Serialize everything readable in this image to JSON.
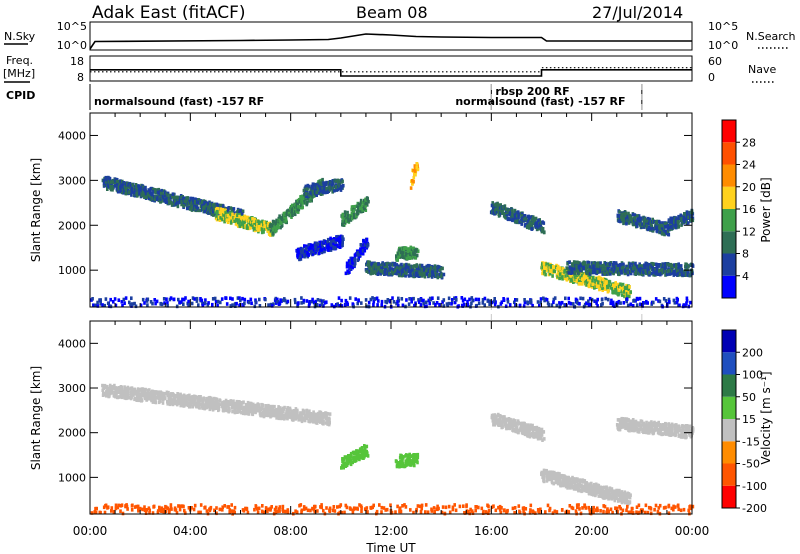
{
  "header": {
    "station": "Adak East (fitACF)",
    "beam": "Beam 08",
    "date": "27/Jul/2014"
  },
  "strip1": {
    "left_label": "N.Sky",
    "right_label": "N.Search",
    "left_ticks": [
      "10^5",
      "10^0"
    ],
    "right_ticks": [
      "10^5",
      "10^0"
    ]
  },
  "strip2": {
    "left_label_1": "Freq.",
    "left_label_2": "[MHz]",
    "right_label": "Nave",
    "left_ticks": [
      "18",
      "8"
    ],
    "right_ticks": [
      "60",
      "0"
    ]
  },
  "cpid": {
    "label": "CPID",
    "segments": [
      {
        "text": "normalsound (fast) -157 RF",
        "start_hour": 0.0,
        "end_hour": 16.0
      },
      {
        "text": "rbsp 200 RF",
        "start_hour": 16.0,
        "end_hour": 22.0
      },
      {
        "text": "normalsound (fast) -157 RF",
        "start_hour": 16.0,
        "end_hour": 22.0
      }
    ]
  },
  "time_axis": {
    "label": "Time UT",
    "ticks": [
      "00:00",
      "04:00",
      "08:00",
      "12:00",
      "16:00",
      "20:00",
      "00:00"
    ]
  },
  "panels": {
    "power": {
      "ylabel": "Slant Range [km]",
      "yticks": [
        "1000",
        "2000",
        "3000",
        "4000"
      ],
      "cbar_label": "Power [dB]",
      "cbar_ticks": [
        "4",
        "8",
        "12",
        "16",
        "20",
        "24",
        "28"
      ]
    },
    "velocity": {
      "ylabel": "Slant Range [km]",
      "yticks": [
        "1000",
        "2000",
        "3000",
        "4000"
      ],
      "cbar_label": "Velocity [m s⁻¹]",
      "cbar_ticks": [
        "200",
        "100",
        "50",
        "15",
        "-15",
        "-50",
        "-100",
        "-200"
      ]
    }
  },
  "colors": {
    "power_scale": [
      "#0000ff",
      "#1c3fa0",
      "#2e6e55",
      "#3fa04a",
      "#ffd21e",
      "#ff8c00",
      "#ff5000",
      "#ff0000"
    ],
    "velocity_scale": [
      "#0000b4",
      "#1f4fbf",
      "#2d7a46",
      "#56c53a",
      "#c0c0c0",
      "#ff8c00",
      "#ff5500",
      "#ff0000"
    ],
    "dashed_lines": "#c8c8c8"
  },
  "chart_data": {
    "type": "heatmap",
    "x_range_hours": [
      0,
      24
    ],
    "y_range_km": [
      180,
      4500
    ],
    "dashed_time_markers_hours": [
      16.0,
      22.0
    ],
    "n_sky_log10": {
      "x_hours": [
        0.0,
        0.2,
        6.0,
        8.0,
        9.5,
        10.0,
        11.0,
        12.0,
        13.0,
        14.0,
        16.0,
        18.0,
        18.2,
        24.0
      ],
      "y": [
        0.0,
        1.5,
        1.7,
        1.8,
        1.9,
        2.2,
        3.0,
        2.8,
        2.5,
        2.4,
        2.3,
        2.3,
        1.6,
        1.6
      ]
    },
    "freq_mhz": {
      "x_hours": [
        0.0,
        10.0,
        10.0,
        18.0,
        18.0,
        24.0
      ],
      "y": [
        12.5,
        12.5,
        10.0,
        10.0,
        12.5,
        12.5
      ]
    },
    "nave": {
      "x_hours": [
        0.0,
        10.0,
        10.0,
        18.0,
        18.0,
        24.0
      ],
      "y": [
        22,
        22,
        22,
        22,
        32,
        32
      ]
    },
    "power_echoes": [
      {
        "t0": 0.5,
        "t1": 6.0,
        "r0": 2950,
        "r1": 2200,
        "power_db": 8
      },
      {
        "t0": 5.0,
        "t1": 7.2,
        "r0": 2250,
        "r1": 1900,
        "power_db": 16
      },
      {
        "t0": 7.2,
        "t1": 9.2,
        "r0": 1900,
        "r1": 2900,
        "power_db": 12
      },
      {
        "t0": 8.5,
        "t1": 10.0,
        "r0": 2750,
        "r1": 2900,
        "power_db": 8
      },
      {
        "t0": 10.0,
        "t1": 11.0,
        "r0": 2100,
        "r1": 2500,
        "power_db": 12
      },
      {
        "t0": 8.2,
        "t1": 10.0,
        "r0": 1350,
        "r1": 1650,
        "power_db": 4
      },
      {
        "t0": 10.2,
        "t1": 11.0,
        "r0": 1000,
        "r1": 1600,
        "power_db": 4
      },
      {
        "t0": 11.0,
        "t1": 14.0,
        "r0": 1050,
        "r1": 950,
        "power_db": 8
      },
      {
        "t0": 12.2,
        "t1": 13.0,
        "r0": 1350,
        "r1": 1400,
        "power_db": 12
      },
      {
        "t0": 12.8,
        "t1": 13.0,
        "r0": 2950,
        "r1": 3400,
        "power_db": 20
      },
      {
        "t0": 16.0,
        "t1": 18.0,
        "r0": 2400,
        "r1": 1950,
        "power_db": 8
      },
      {
        "t0": 18.0,
        "t1": 21.5,
        "r0": 1050,
        "r1": 500,
        "power_db": 16
      },
      {
        "t0": 19.0,
        "t1": 24.0,
        "r0": 1050,
        "r1": 1000,
        "power_db": 8
      },
      {
        "t0": 21.0,
        "t1": 23.0,
        "r0": 2200,
        "r1": 1900,
        "power_db": 8
      },
      {
        "t0": 23.0,
        "t1": 24.0,
        "r0": 2000,
        "r1": 2200,
        "power_db": 8
      },
      {
        "t0": 0.0,
        "t1": 24.0,
        "r0": 250,
        "r1": 250,
        "power_db": 4
      }
    ],
    "velocity_echoes": [
      {
        "t0": 0.5,
        "t1": 9.5,
        "r0": 2950,
        "r1": 2300,
        "velocity": 0
      },
      {
        "t0": 10.0,
        "t1": 11.0,
        "r0": 1300,
        "r1": 1600,
        "velocity": 35
      },
      {
        "t0": 12.2,
        "t1": 13.0,
        "r0": 1350,
        "r1": 1400,
        "velocity": 40
      },
      {
        "t0": 16.0,
        "t1": 18.0,
        "r0": 2300,
        "r1": 1950,
        "velocity": 0
      },
      {
        "t0": 18.0,
        "t1": 21.5,
        "r0": 1050,
        "r1": 500,
        "velocity": 0
      },
      {
        "t0": 21.0,
        "t1": 24.0,
        "r0": 2200,
        "r1": 2000,
        "velocity": 0
      },
      {
        "t0": 0.0,
        "t1": 24.0,
        "r0": 250,
        "r1": 250,
        "velocity": -60
      }
    ]
  }
}
